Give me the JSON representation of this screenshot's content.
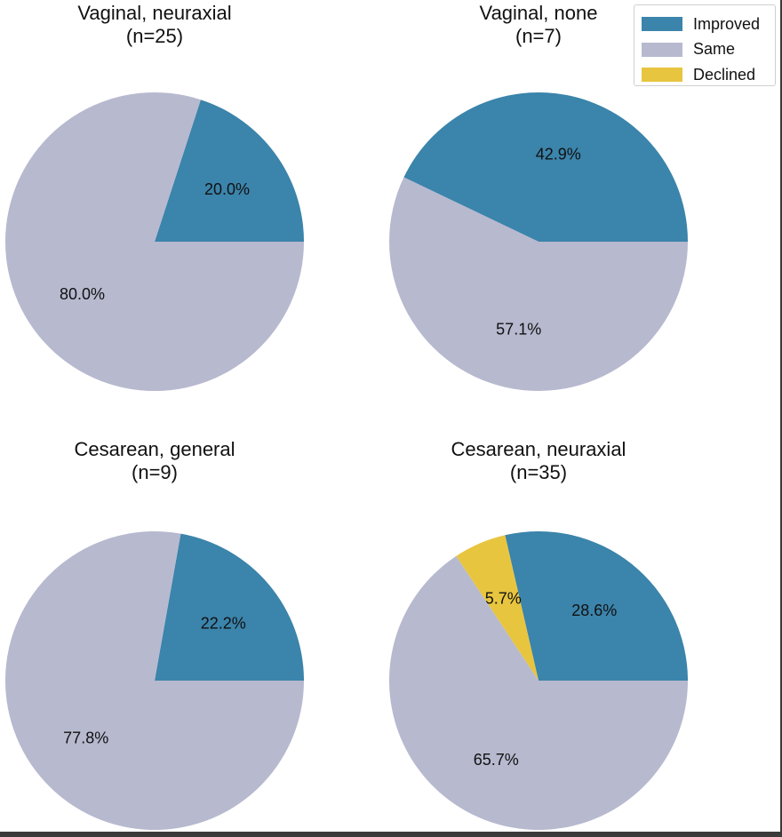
{
  "chart_data": {
    "type": "pie",
    "legend": {
      "placement": "top-right",
      "entries": [
        {
          "label": "Improved",
          "color": "#3b84ab"
        },
        {
          "label": "Same",
          "color": "#b7b9cf"
        },
        {
          "label": "Declined",
          "color": "#e8c53f"
        }
      ]
    },
    "charts": [
      {
        "title_line1": "Vaginal, neuraxial",
        "title_line2": "(n=25)",
        "slices": [
          {
            "category": "Improved",
            "value": 20.0,
            "label": "20.0%"
          },
          {
            "category": "Same",
            "value": 80.0,
            "label": "80.0%"
          }
        ]
      },
      {
        "title_line1": "Vaginal, none",
        "title_line2": "(n=7)",
        "slices": [
          {
            "category": "Improved",
            "value": 42.9,
            "label": "42.9%"
          },
          {
            "category": "Same",
            "value": 57.1,
            "label": "57.1%"
          }
        ]
      },
      {
        "title_line1": "Cesarean, general",
        "title_line2": "(n=9)",
        "slices": [
          {
            "category": "Improved",
            "value": 22.2,
            "label": "22.2%"
          },
          {
            "category": "Same",
            "value": 77.8,
            "label": "77.8%"
          }
        ]
      },
      {
        "title_line1": "Cesarean, neuraxial",
        "title_line2": "(n=35)",
        "slices": [
          {
            "category": "Improved",
            "value": 28.6,
            "label": "28.6%"
          },
          {
            "category": "Declined",
            "value": 5.7,
            "label": "5.7%"
          },
          {
            "category": "Same",
            "value": 65.7,
            "label": "65.7%"
          }
        ]
      }
    ]
  }
}
